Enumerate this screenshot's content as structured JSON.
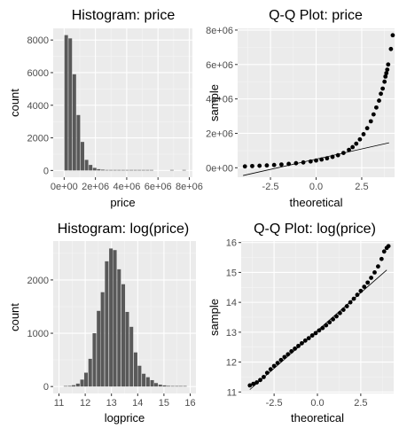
{
  "chart_data": [
    {
      "type": "bar",
      "title": "Histogram: price",
      "xlabel": "price",
      "ylabel": "count",
      "xlim": [
        -700000,
        8200000
      ],
      "ylim": [
        -415,
        8715
      ],
      "xticks": [
        {
          "v": 0,
          "label": "0e+00"
        },
        {
          "v": 2000000,
          "label": "2e+06"
        },
        {
          "v": 4000000,
          "label": "4e+06"
        },
        {
          "v": 6000000,
          "label": "6e+06"
        },
        {
          "v": 8000000,
          "label": "8e+06"
        }
      ],
      "yticks": [
        {
          "v": 0,
          "label": "0"
        },
        {
          "v": 2000,
          "label": "2000"
        },
        {
          "v": 4000,
          "label": "4000"
        },
        {
          "v": 6000,
          "label": "6000"
        },
        {
          "v": 8000,
          "label": "8000"
        }
      ],
      "bin_width": 260000,
      "bins": [
        {
          "x": 130000,
          "y": 8300
        },
        {
          "x": 390000,
          "y": 8100
        },
        {
          "x": 650000,
          "y": 5900
        },
        {
          "x": 910000,
          "y": 3400
        },
        {
          "x": 1170000,
          "y": 1750
        },
        {
          "x": 1430000,
          "y": 650
        },
        {
          "x": 1690000,
          "y": 340
        },
        {
          "x": 1950000,
          "y": 160
        },
        {
          "x": 2210000,
          "y": 80
        },
        {
          "x": 2470000,
          "y": 50
        },
        {
          "x": 2730000,
          "y": 30
        },
        {
          "x": 2990000,
          "y": 20
        },
        {
          "x": 3250000,
          "y": 10
        },
        {
          "x": 3510000,
          "y": 8
        },
        {
          "x": 3770000,
          "y": 5
        },
        {
          "x": 4030000,
          "y": 5
        },
        {
          "x": 4290000,
          "y": 3
        },
        {
          "x": 4550000,
          "y": 3
        },
        {
          "x": 4810000,
          "y": 2
        },
        {
          "x": 5070000,
          "y": 2
        },
        {
          "x": 5330000,
          "y": 2
        },
        {
          "x": 5590000,
          "y": 1
        },
        {
          "x": 6890000,
          "y": 1
        },
        {
          "x": 7670000,
          "y": 1
        }
      ],
      "grid": true
    },
    {
      "type": "scatter",
      "title": "Q-Q Plot: price",
      "xlabel": "theoretical",
      "ylabel": "sample",
      "xlim": [
        -4.3,
        4.3
      ],
      "ylim": [
        -550000,
        8100000
      ],
      "xticks": [
        {
          "v": -2.5,
          "label": "-2.5"
        },
        {
          "v": 0,
          "label": "0.0"
        },
        {
          "v": 2.5,
          "label": "2.5"
        }
      ],
      "yticks": [
        {
          "v": 0,
          "label": "0e+00"
        },
        {
          "v": 2000000,
          "label": "2e+06"
        },
        {
          "v": 4000000,
          "label": "4e+06"
        },
        {
          "v": 6000000,
          "label": "6e+06"
        },
        {
          "v": 8000000,
          "label": "8e+06"
        }
      ],
      "points": [
        {
          "x": -3.9,
          "y": 80000
        },
        {
          "x": -3.5,
          "y": 100000
        },
        {
          "x": -3.1,
          "y": 115000
        },
        {
          "x": -2.7,
          "y": 135000
        },
        {
          "x": -2.3,
          "y": 160000
        },
        {
          "x": -1.9,
          "y": 190000
        },
        {
          "x": -1.5,
          "y": 225000
        },
        {
          "x": -1.1,
          "y": 265000
        },
        {
          "x": -0.7,
          "y": 310000
        },
        {
          "x": -0.3,
          "y": 365000
        },
        {
          "x": 0,
          "y": 420000
        },
        {
          "x": 0.3,
          "y": 480000
        },
        {
          "x": 0.6,
          "y": 550000
        },
        {
          "x": 0.9,
          "y": 630000
        },
        {
          "x": 1.2,
          "y": 730000
        },
        {
          "x": 1.5,
          "y": 860000
        },
        {
          "x": 1.8,
          "y": 1040000
        },
        {
          "x": 2.0,
          "y": 1200000
        },
        {
          "x": 2.2,
          "y": 1400000
        },
        {
          "x": 2.4,
          "y": 1650000
        },
        {
          "x": 2.6,
          "y": 1950000
        },
        {
          "x": 2.8,
          "y": 2300000
        },
        {
          "x": 3.0,
          "y": 2700000
        },
        {
          "x": 3.15,
          "y": 3100000
        },
        {
          "x": 3.3,
          "y": 3500000
        },
        {
          "x": 3.45,
          "y": 3900000
        },
        {
          "x": 3.55,
          "y": 4300000
        },
        {
          "x": 3.65,
          "y": 4600000
        },
        {
          "x": 3.75,
          "y": 5000000
        },
        {
          "x": 3.8,
          "y": 5300000
        },
        {
          "x": 3.85,
          "y": 5500000
        },
        {
          "x": 3.9,
          "y": 5700000
        },
        {
          "x": 3.95,
          "y": 6000000
        },
        {
          "x": 4.1,
          "y": 6900000
        },
        {
          "x": 4.2,
          "y": 7700000
        }
      ],
      "reference_line": [
        {
          "x": -4.0,
          "y": -450000
        },
        {
          "x": 4.0,
          "y": 1450000
        }
      ],
      "grid": true
    },
    {
      "type": "bar",
      "title": "Histogram: log(price)",
      "xlabel": "logprice",
      "ylabel": "count",
      "xlim": [
        10.78,
        16.22
      ],
      "ylim": [
        -130,
        2730
      ],
      "xticks": [
        {
          "v": 11,
          "label": "11"
        },
        {
          "v": 12,
          "label": "12"
        },
        {
          "v": 13,
          "label": "13"
        },
        {
          "v": 14,
          "label": "14"
        },
        {
          "v": 15,
          "label": "15"
        },
        {
          "v": 16,
          "label": "16"
        }
      ],
      "yticks": [
        {
          "v": 0,
          "label": "0"
        },
        {
          "v": 1000,
          "label": "1000"
        },
        {
          "v": 2000,
          "label": "2000"
        }
      ],
      "bin_width": 0.157,
      "bins": [
        {
          "x": 11.25,
          "y": 8
        },
        {
          "x": 11.41,
          "y": 12
        },
        {
          "x": 11.56,
          "y": 25
        },
        {
          "x": 11.72,
          "y": 55
        },
        {
          "x": 11.88,
          "y": 130
        },
        {
          "x": 12.03,
          "y": 260
        },
        {
          "x": 12.19,
          "y": 520
        },
        {
          "x": 12.35,
          "y": 1000
        },
        {
          "x": 12.51,
          "y": 1420
        },
        {
          "x": 12.66,
          "y": 1770
        },
        {
          "x": 12.82,
          "y": 2350
        },
        {
          "x": 12.98,
          "y": 2590
        },
        {
          "x": 13.13,
          "y": 2560
        },
        {
          "x": 13.29,
          "y": 2200
        },
        {
          "x": 13.45,
          "y": 1920
        },
        {
          "x": 13.6,
          "y": 1400
        },
        {
          "x": 13.76,
          "y": 1120
        },
        {
          "x": 13.92,
          "y": 640
        },
        {
          "x": 14.07,
          "y": 390
        },
        {
          "x": 14.23,
          "y": 240
        },
        {
          "x": 14.39,
          "y": 175
        },
        {
          "x": 14.55,
          "y": 120
        },
        {
          "x": 14.7,
          "y": 65
        },
        {
          "x": 14.86,
          "y": 35
        },
        {
          "x": 15.02,
          "y": 22
        },
        {
          "x": 15.17,
          "y": 12
        },
        {
          "x": 15.33,
          "y": 8
        },
        {
          "x": 15.49,
          "y": 5
        },
        {
          "x": 15.64,
          "y": 3
        },
        {
          "x": 15.8,
          "y": 2
        }
      ],
      "grid": true
    },
    {
      "type": "scatter",
      "title": "Q-Q Plot: log(price)",
      "xlabel": "theoretical",
      "ylabel": "sample",
      "xlim": [
        -4.4,
        4.4
      ],
      "ylim": [
        10.95,
        16.05
      ],
      "xticks": [
        {
          "v": -2.5,
          "label": "-2.5"
        },
        {
          "v": 0,
          "label": "0.0"
        },
        {
          "v": 2.5,
          "label": "2.5"
        }
      ],
      "yticks": [
        {
          "v": 11,
          "label": "11"
        },
        {
          "v": 12,
          "label": "12"
        },
        {
          "v": 13,
          "label": "13"
        },
        {
          "v": 14,
          "label": "14"
        },
        {
          "v": 15,
          "label": "15"
        },
        {
          "v": 16,
          "label": "16"
        }
      ],
      "points": [
        {
          "x": -3.9,
          "y": 11.22
        },
        {
          "x": -3.7,
          "y": 11.27
        },
        {
          "x": -3.5,
          "y": 11.32
        },
        {
          "x": -3.3,
          "y": 11.4
        },
        {
          "x": -3.1,
          "y": 11.5
        },
        {
          "x": -2.9,
          "y": 11.64
        },
        {
          "x": -2.7,
          "y": 11.76
        },
        {
          "x": -2.5,
          "y": 11.87
        },
        {
          "x": -2.3,
          "y": 11.97
        },
        {
          "x": -2.1,
          "y": 12.07
        },
        {
          "x": -1.9,
          "y": 12.17
        },
        {
          "x": -1.7,
          "y": 12.26
        },
        {
          "x": -1.5,
          "y": 12.36
        },
        {
          "x": -1.3,
          "y": 12.45
        },
        {
          "x": -1.1,
          "y": 12.54
        },
        {
          "x": -0.9,
          "y": 12.63
        },
        {
          "x": -0.7,
          "y": 12.72
        },
        {
          "x": -0.5,
          "y": 12.8
        },
        {
          "x": -0.3,
          "y": 12.89
        },
        {
          "x": -0.1,
          "y": 12.97
        },
        {
          "x": 0.1,
          "y": 13.06
        },
        {
          "x": 0.3,
          "y": 13.14
        },
        {
          "x": 0.5,
          "y": 13.23
        },
        {
          "x": 0.7,
          "y": 13.33
        },
        {
          "x": 0.9,
          "y": 13.43
        },
        {
          "x": 1.1,
          "y": 13.53
        },
        {
          "x": 1.3,
          "y": 13.64
        },
        {
          "x": 1.5,
          "y": 13.75
        },
        {
          "x": 1.7,
          "y": 13.87
        },
        {
          "x": 1.9,
          "y": 14.0
        },
        {
          "x": 2.1,
          "y": 14.12
        },
        {
          "x": 2.3,
          "y": 14.25
        },
        {
          "x": 2.5,
          "y": 14.38
        },
        {
          "x": 2.7,
          "y": 14.52
        },
        {
          "x": 2.9,
          "y": 14.66
        },
        {
          "x": 3.1,
          "y": 14.82
        },
        {
          "x": 3.3,
          "y": 15.0
        },
        {
          "x": 3.5,
          "y": 15.2
        },
        {
          "x": 3.7,
          "y": 15.45
        },
        {
          "x": 3.85,
          "y": 15.7
        },
        {
          "x": 4.0,
          "y": 15.82
        },
        {
          "x": 4.1,
          "y": 15.88
        }
      ],
      "reference_line": [
        {
          "x": -3.9,
          "y": 11.08
        },
        {
          "x": 4.0,
          "y": 15.08
        }
      ],
      "grid": true
    }
  ]
}
